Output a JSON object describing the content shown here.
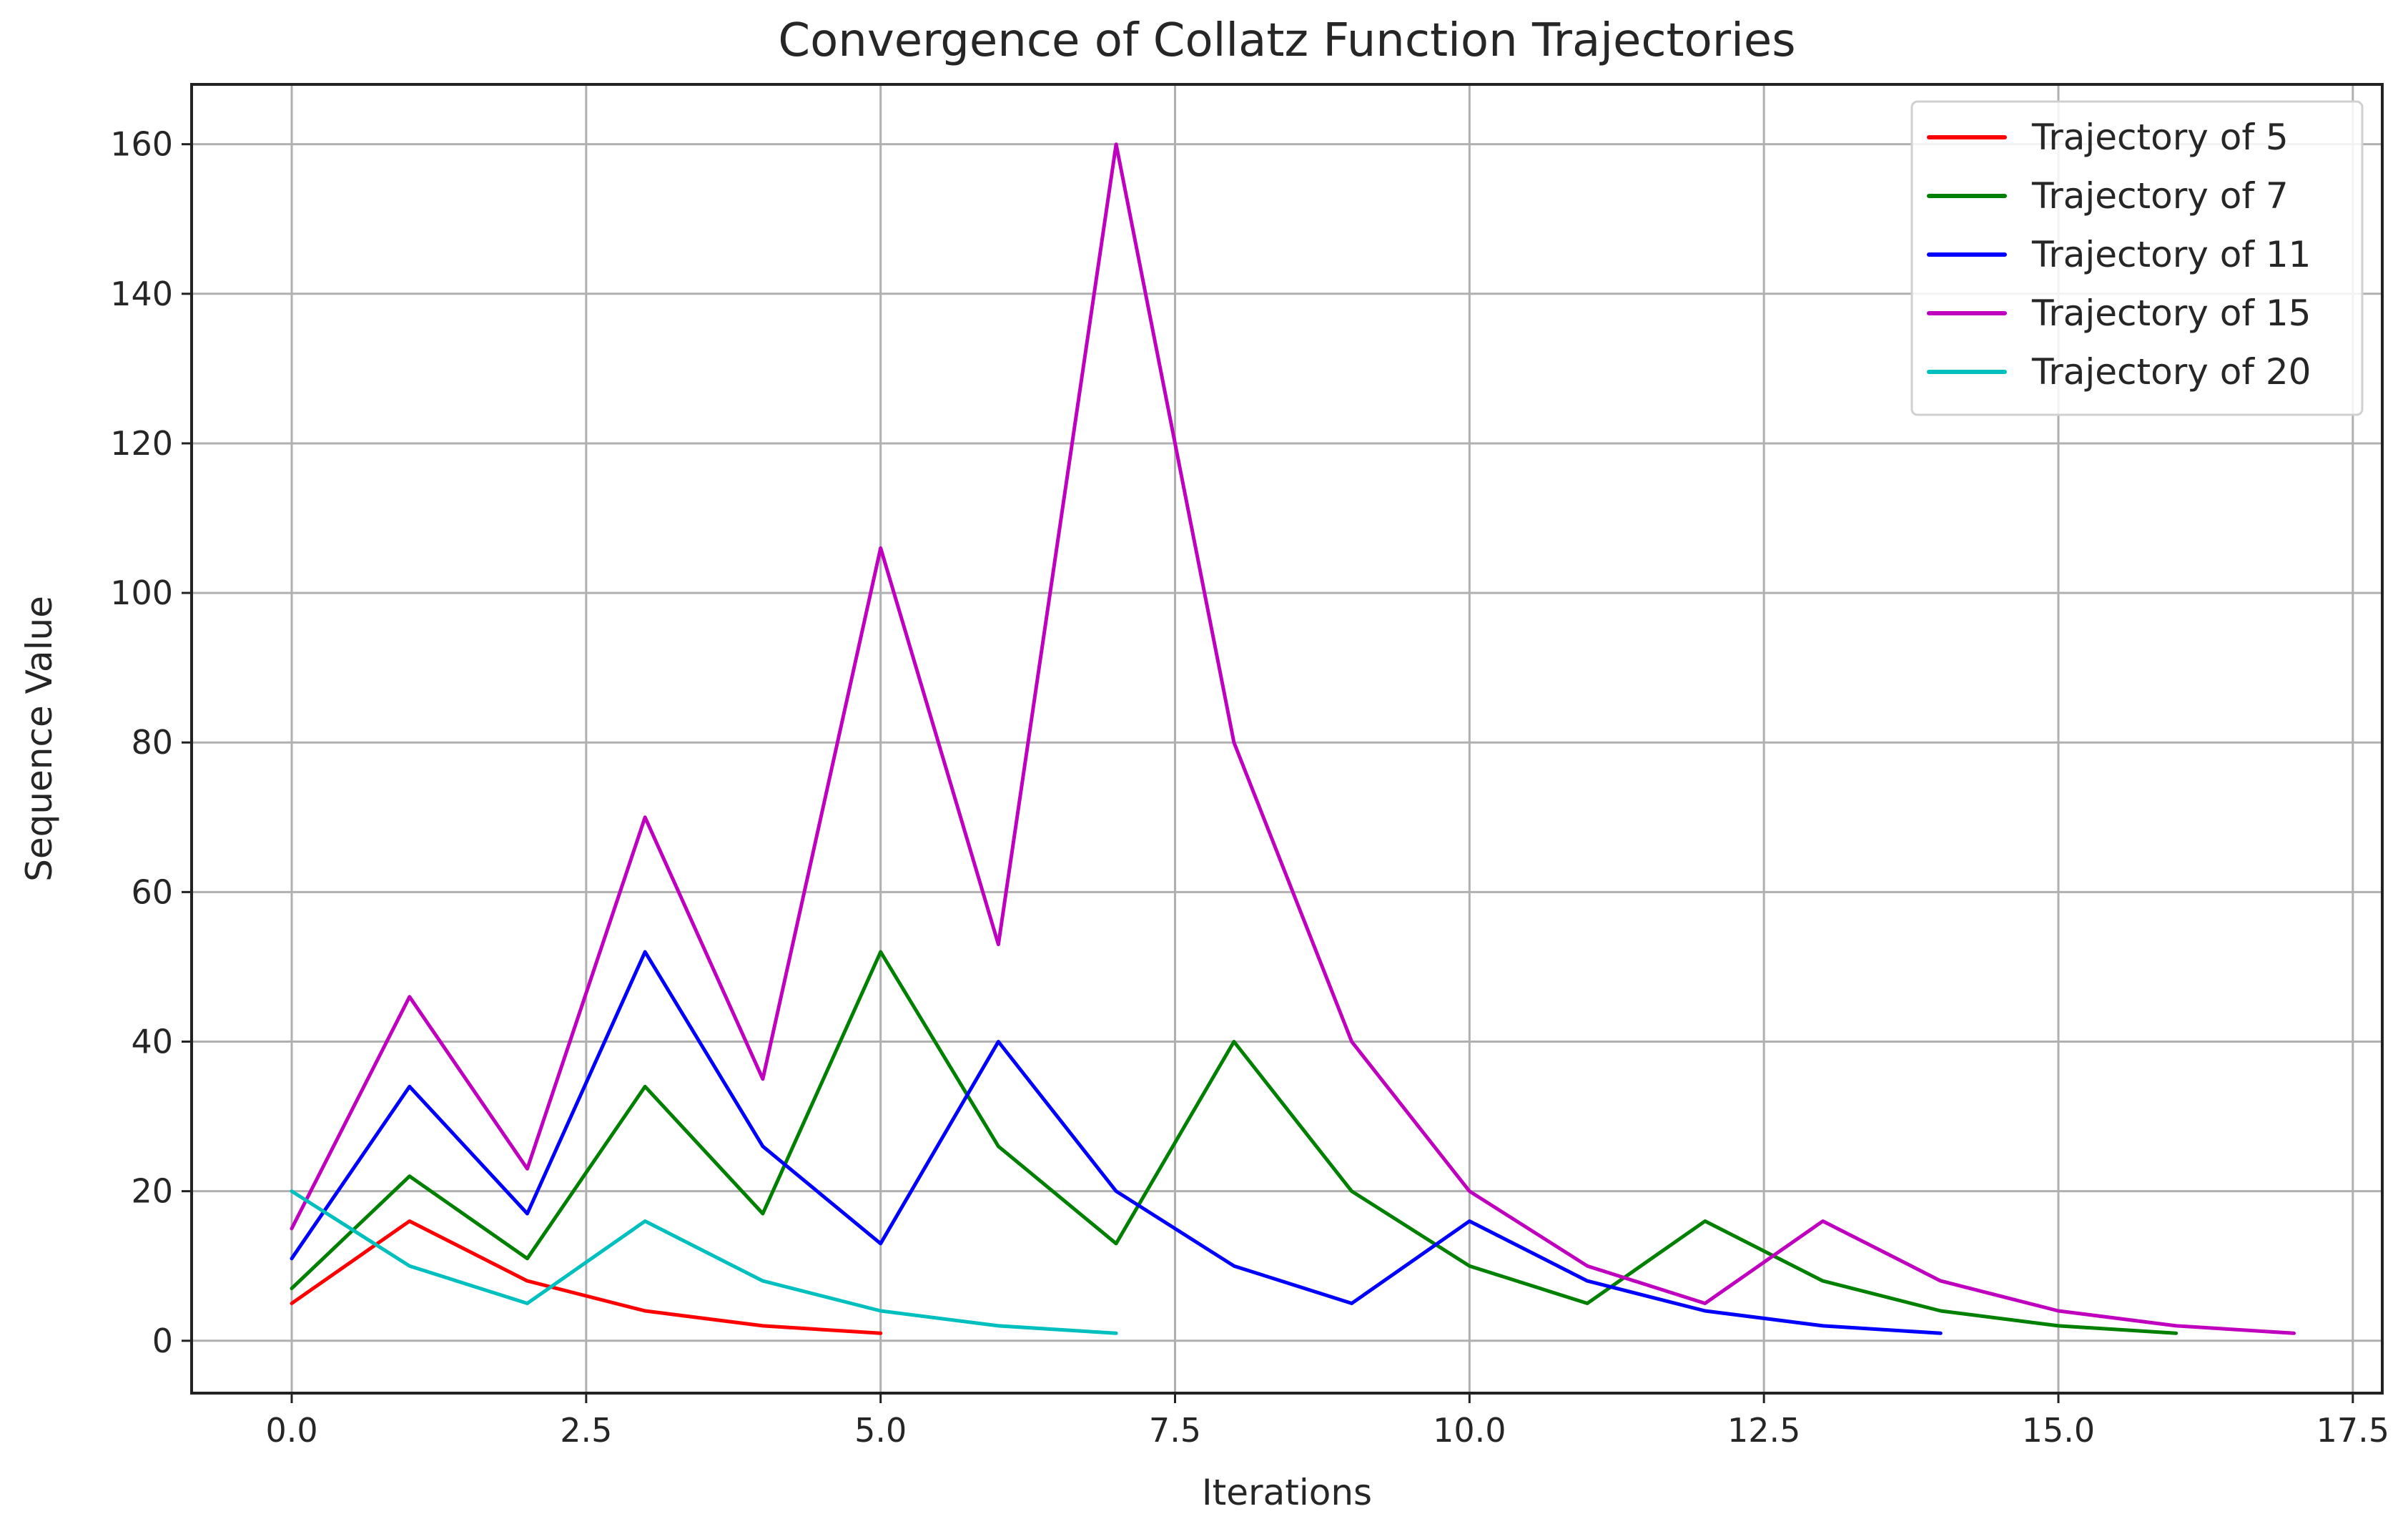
{
  "chart_data": {
    "type": "line",
    "title": "Convergence of Collatz Function Trajectories",
    "xlabel": "Iterations",
    "ylabel": "Sequence Value",
    "xlim": [
      -0.85,
      17.75
    ],
    "ylim": [
      -7,
      168
    ],
    "xticks": [
      0.0,
      2.5,
      5.0,
      7.5,
      10.0,
      12.5,
      15.0,
      17.5
    ],
    "xtick_labels": [
      "0.0",
      "2.5",
      "5.0",
      "7.5",
      "10.0",
      "12.5",
      "15.0",
      "17.5"
    ],
    "yticks": [
      0,
      20,
      40,
      60,
      80,
      100,
      120,
      140,
      160
    ],
    "ytick_labels": [
      "0",
      "20",
      "40",
      "60",
      "80",
      "100",
      "120",
      "140",
      "160"
    ],
    "grid": true,
    "legend_position": "top-right",
    "series": [
      {
        "name": "Trajectory of 5",
        "color": "#ff0000",
        "x": [
          0,
          1,
          2,
          3,
          4,
          5
        ],
        "values": [
          5,
          16,
          8,
          4,
          2,
          1
        ]
      },
      {
        "name": "Trajectory of 7",
        "color": "#008000",
        "x": [
          0,
          1,
          2,
          3,
          4,
          5,
          6,
          7,
          8,
          9,
          10,
          11,
          12,
          13,
          14,
          15,
          16
        ],
        "values": [
          7,
          22,
          11,
          34,
          17,
          52,
          26,
          13,
          40,
          20,
          10,
          5,
          16,
          8,
          4,
          2,
          1
        ]
      },
      {
        "name": "Trajectory of 11",
        "color": "#0000ff",
        "x": [
          0,
          1,
          2,
          3,
          4,
          5,
          6,
          7,
          8,
          9,
          10,
          11,
          12,
          13,
          14
        ],
        "values": [
          11,
          34,
          17,
          52,
          26,
          13,
          40,
          20,
          10,
          5,
          16,
          8,
          4,
          2,
          1
        ]
      },
      {
        "name": "Trajectory of 15",
        "color": "#bf00bf",
        "x": [
          0,
          1,
          2,
          3,
          4,
          5,
          6,
          7,
          8,
          9,
          10,
          11,
          12,
          13,
          14,
          15,
          16,
          17
        ],
        "values": [
          15,
          46,
          23,
          70,
          35,
          106,
          53,
          160,
          80,
          40,
          20,
          10,
          5,
          16,
          8,
          4,
          2,
          1
        ]
      },
      {
        "name": "Trajectory of 20",
        "color": "#00bfbf",
        "x": [
          0,
          1,
          2,
          3,
          4,
          5,
          6,
          7
        ],
        "values": [
          20,
          10,
          5,
          16,
          8,
          4,
          2,
          1
        ]
      }
    ]
  }
}
